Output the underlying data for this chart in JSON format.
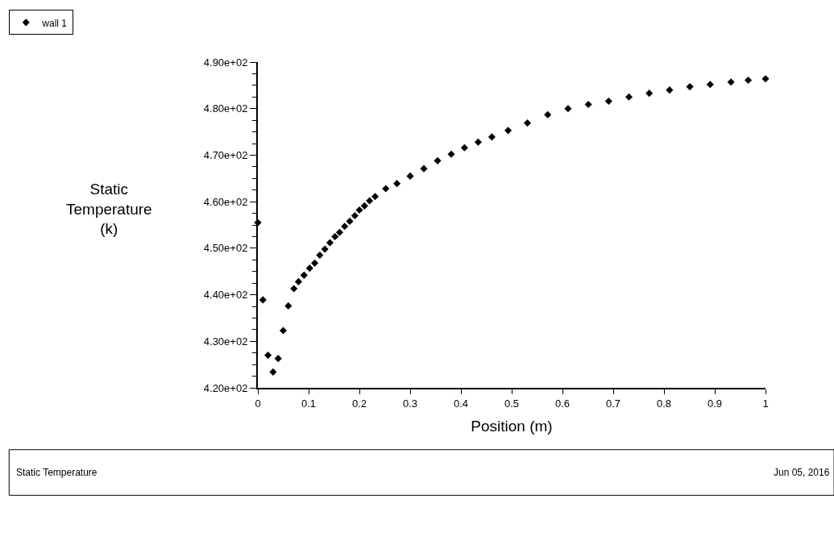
{
  "chart_data": {
    "type": "scatter",
    "xlabel": "Position (m)",
    "ylabel": "Static Temperature (k)",
    "x": [
      0,
      0.01,
      0.02,
      0.03,
      0.04,
      0.05,
      0.06,
      0.071,
      0.08,
      0.091,
      0.102,
      0.112,
      0.122,
      0.132,
      0.142,
      0.152,
      0.161,
      0.171,
      0.181,
      0.191,
      0.2,
      0.21,
      0.22,
      0.231,
      0.252,
      0.274,
      0.3,
      0.327,
      0.354,
      0.381,
      0.407,
      0.434,
      0.461,
      0.493,
      0.531,
      0.571,
      0.611,
      0.651,
      0.691,
      0.731,
      0.771,
      0.811,
      0.851,
      0.891,
      0.932,
      0.966,
      1
    ],
    "series": [
      {
        "name": "wall 1",
        "color": "#000000",
        "values": [
          455.5,
          438.9,
          427.0,
          423.4,
          426.3,
          432.3,
          437.6,
          441.3,
          442.8,
          444.2,
          445.7,
          446.8,
          448.5,
          449.8,
          451.2,
          452.5,
          453.4,
          454.7,
          455.8,
          457.0,
          458.2,
          459.1,
          460.2,
          461.1,
          462.8,
          463.9,
          465.5,
          467.1,
          468.8,
          470.2,
          471.6,
          472.8,
          473.9,
          475.3,
          476.9,
          478.7,
          480.0,
          480.9,
          481.6,
          482.5,
          483.3,
          484.0,
          484.7,
          485.2,
          485.7,
          486.1,
          486.4
        ]
      }
    ],
    "marker": "diamond",
    "legend": "top left",
    "grid": false,
    "xlim": [
      0,
      1
    ],
    "xticks": [
      0,
      0.1,
      0.2,
      0.3,
      0.4,
      0.5,
      0.6,
      0.7,
      0.8,
      0.9,
      1
    ],
    "ylim": [
      420,
      490
    ],
    "yticks": [
      {
        "value": 420,
        "label": "4.20e+02"
      },
      {
        "value": 430,
        "label": "4.30e+02"
      },
      {
        "value": 440,
        "label": "4.40e+02"
      },
      {
        "value": 450,
        "label": "4.50e+02"
      },
      {
        "value": 460,
        "label": "4.60e+02"
      },
      {
        "value": 470,
        "label": "4.70e+02"
      },
      {
        "value": 480,
        "label": "4.80e+02"
      },
      {
        "value": 490,
        "label": "4.90e+02"
      }
    ],
    "annotations": [
      "Static Temperature",
      "Jun 05, 2016"
    ]
  }
}
